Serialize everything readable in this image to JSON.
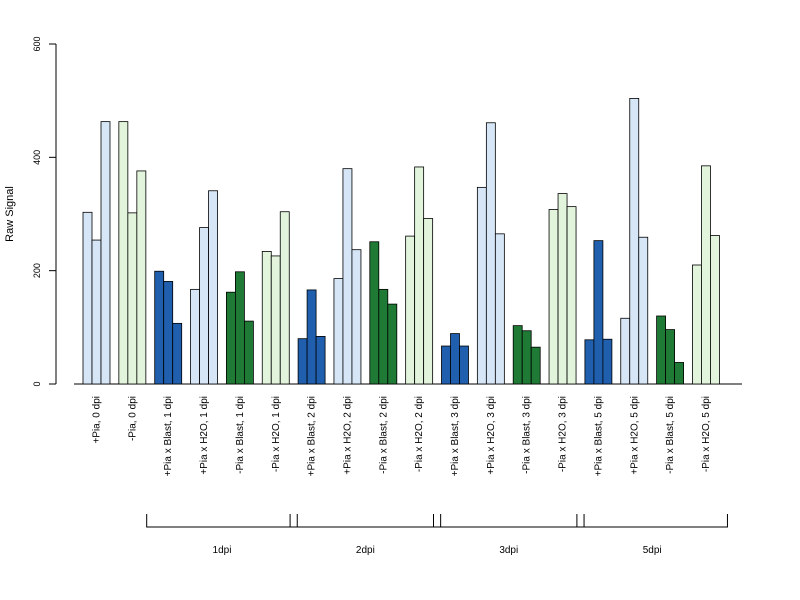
{
  "chart_data": {
    "type": "bar",
    "ylabel": "Raw Signal",
    "ylim": [
      0,
      600
    ],
    "yticks": [
      0,
      200,
      400,
      600
    ],
    "colors": {
      "light_blue": "#d6e6f7",
      "dark_blue": "#1f5fae",
      "dark_green": "#1e7a34",
      "light_green": "#e2f5dc"
    },
    "categories": [
      {
        "label": "+Pia, 0 dpi",
        "color": "light_blue",
        "values": [
          303,
          254,
          463
        ]
      },
      {
        "label": "-Pia, 0 dpi",
        "color": "light_green",
        "values": [
          463,
          302,
          376
        ]
      },
      {
        "label": "+Pia x Blast, 1 dpi",
        "color": "dark_blue",
        "values": [
          199,
          181,
          107
        ]
      },
      {
        "label": "+Pia x H2O, 1 dpi",
        "color": "light_blue",
        "values": [
          167,
          276,
          341
        ]
      },
      {
        "label": "-Pia x Blast, 1 dpi",
        "color": "dark_green",
        "values": [
          162,
          198,
          111
        ]
      },
      {
        "label": "-Pia x H2O, 1 dpi",
        "color": "light_green",
        "values": [
          234,
          226,
          304
        ]
      },
      {
        "label": "+Pia x Blast, 2 dpi",
        "color": "dark_blue",
        "values": [
          80,
          166,
          84
        ]
      },
      {
        "label": "+Pia x H2O, 2 dpi",
        "color": "light_blue",
        "values": [
          186,
          380,
          237
        ]
      },
      {
        "label": "-Pia x Blast, 2 dpi",
        "color": "dark_green",
        "values": [
          251,
          167,
          141
        ]
      },
      {
        "label": "-Pia x H2O, 2 dpi",
        "color": "light_green",
        "values": [
          261,
          383,
          292
        ]
      },
      {
        "label": "+Pia x Blast, 3 dpi",
        "color": "dark_blue",
        "values": [
          67,
          89,
          67
        ]
      },
      {
        "label": "+Pia x H2O, 3 dpi",
        "color": "light_blue",
        "values": [
          347,
          461,
          265
        ]
      },
      {
        "label": "-Pia x Blast, 3 dpi",
        "color": "dark_green",
        "values": [
          103,
          94,
          65
        ]
      },
      {
        "label": "-Pia x H2O, 3 dpi",
        "color": "light_green",
        "values": [
          308,
          336,
          313
        ]
      },
      {
        "label": "+Pia x Blast, 5 dpi",
        "color": "dark_blue",
        "values": [
          78,
          253,
          79
        ]
      },
      {
        "label": "+Pia x H2O, 5 dpi",
        "color": "light_blue",
        "values": [
          116,
          504,
          259
        ]
      },
      {
        "label": "-Pia x Blast, 5 dpi",
        "color": "dark_green",
        "values": [
          120,
          96,
          38
        ]
      },
      {
        "label": "-Pia x H2O, 5 dpi",
        "color": "light_green",
        "values": [
          210,
          385,
          262
        ]
      }
    ],
    "groups": [
      {
        "label": "1dpi",
        "from": 2,
        "to": 5
      },
      {
        "label": "2dpi",
        "from": 6,
        "to": 9
      },
      {
        "label": "3dpi",
        "from": 10,
        "to": 13
      },
      {
        "label": "5dpi",
        "from": 14,
        "to": 17
      }
    ]
  }
}
